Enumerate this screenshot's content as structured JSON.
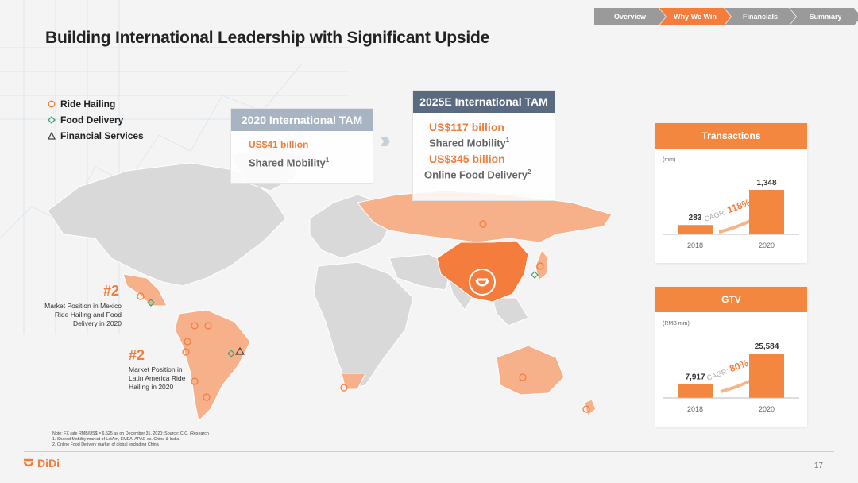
{
  "nav": {
    "tabs": [
      {
        "label": "Overview",
        "active": false
      },
      {
        "label": "Why We Win",
        "active": true
      },
      {
        "label": "Financials",
        "active": false
      },
      {
        "label": "Summary",
        "active": false
      }
    ]
  },
  "title": "Building International Leadership with Significant Upside",
  "legend": {
    "ride": "Ride Hailing",
    "food": "Food Delivery",
    "fin": "Financial Services"
  },
  "tam2020": {
    "header": "2020 International TAM",
    "amount": "US$41 billion",
    "label": "Shared Mobility",
    "sup": "1"
  },
  "tam2025": {
    "header": "2025E International TAM",
    "amount1": "US$117 billion",
    "label1": "Shared Mobility",
    "sup1": "1",
    "amount2": "US$345 billion",
    "label2": "Online Food Delivery",
    "sup2": "2"
  },
  "mexico": {
    "rank": "#2",
    "text": "Market Position in Mexico Ride Hailing and Food Delivery in 2020"
  },
  "latam": {
    "rank": "#2",
    "text": "Market Position in Latin America Ride Hailing in 2020"
  },
  "transactions": {
    "header": "Transactions",
    "unit": "(mm)",
    "cagr_label": "CAGR:",
    "cagr_value": "118%"
  },
  "gtv": {
    "header": "GTV",
    "unit": "(RMB mm)",
    "cagr_label": "CAGR:",
    "cagr_value": "80%"
  },
  "chart_data": [
    {
      "type": "bar",
      "title": "Transactions",
      "categories": [
        "2018",
        "2020"
      ],
      "values": [
        283,
        1348
      ],
      "value_labels": [
        "283",
        "1,348"
      ],
      "unit": "(mm)",
      "annotation": "CAGR: 118%"
    },
    {
      "type": "bar",
      "title": "GTV",
      "categories": [
        "2018",
        "2020"
      ],
      "values": [
        7917,
        25584
      ],
      "value_labels": [
        "7,917",
        "25,584"
      ],
      "unit": "(RMB mm)",
      "annotation": "CAGR: 80%"
    }
  ],
  "footnote": {
    "line0": "Note: FX rate RMB/US$ = 6.525 as on December 31, 2020; Source: CIC, iResearch",
    "line1": "1.      Shared Mobility market of LatAm, EMEA,  APAC ex. China & India",
    "line2": "2.      Online Food Delivery market of global excluding China"
  },
  "logo_text": "DiDi",
  "page_number": "17",
  "colors": {
    "accent": "#f47c3c",
    "tam2020": "#a9b4c3",
    "tam2025": "#5a6a80",
    "map_land": "#d9d9d9",
    "map_active": "#f6b08a"
  }
}
